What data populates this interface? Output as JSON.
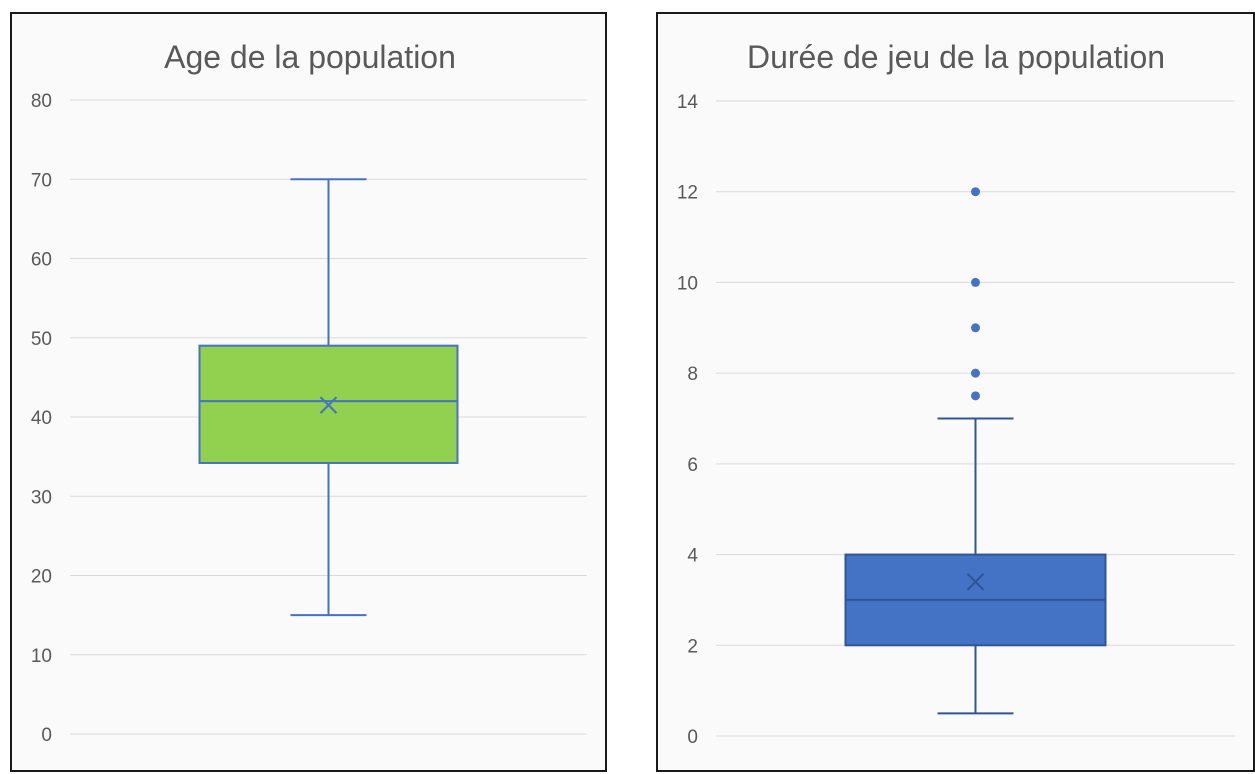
{
  "chart_data": [
    {
      "type": "box",
      "title": "Age de la population",
      "xlabel": "",
      "ylabel": "",
      "ylim": [
        0,
        80
      ],
      "yticks": [
        0,
        10,
        20,
        30,
        40,
        50,
        60,
        70,
        80
      ],
      "grid": true,
      "legend": "none",
      "box": {
        "min": 15,
        "q1": 34.2,
        "median": 42,
        "q3": 49,
        "max": 70,
        "mean": 41.5
      },
      "outliers": [],
      "fill_color": "#92d050",
      "line_color": "#4472c4"
    },
    {
      "type": "box",
      "title": "Durée de jeu de la population",
      "xlabel": "",
      "ylabel": "",
      "ylim": [
        0,
        14
      ],
      "yticks": [
        0,
        2,
        4,
        6,
        8,
        10,
        12,
        14
      ],
      "grid": true,
      "legend": "none",
      "box": {
        "min": 0.5,
        "q1": 2,
        "median": 3,
        "q3": 4,
        "max": 7,
        "mean": 3.4
      },
      "outliers": [
        7.5,
        8,
        9,
        10,
        12
      ],
      "fill_color": "#4472c4",
      "line_color": "#2f5597"
    }
  ]
}
